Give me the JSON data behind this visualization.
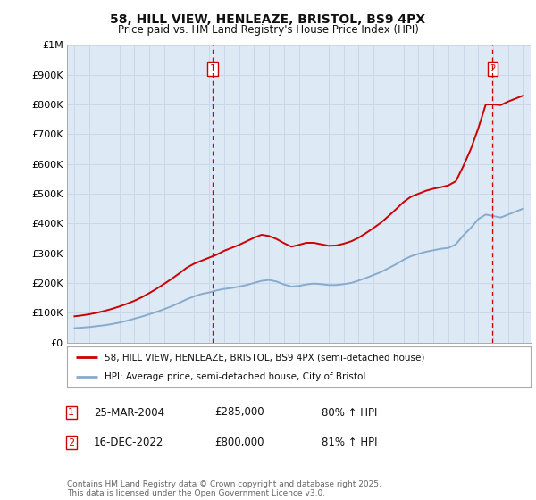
{
  "title": "58, HILL VIEW, HENLEAZE, BRISTOL, BS9 4PX",
  "subtitle": "Price paid vs. HM Land Registry's House Price Index (HPI)",
  "red_label": "58, HILL VIEW, HENLEAZE, BRISTOL, BS9 4PX (semi-detached house)",
  "blue_label": "HPI: Average price, semi-detached house, City of Bristol",
  "annotation1_date": "25-MAR-2004",
  "annotation1_price": "£285,000",
  "annotation1_hpi": "80% ↑ HPI",
  "annotation1_year": 2004.23,
  "annotation2_date": "16-DEC-2022",
  "annotation2_price": "£800,000",
  "annotation2_hpi": "81% ↑ HPI",
  "annotation2_year": 2022.96,
  "footer": "Contains HM Land Registry data © Crown copyright and database right 2025.\nThis data is licensed under the Open Government Licence v3.0.",
  "ylim": [
    0,
    1000000
  ],
  "xlim_start": 1994.5,
  "xlim_end": 2025.5,
  "red_color": "#cc0000",
  "blue_color": "#88aacc",
  "grid_color": "#c8d8e8",
  "bg_color": "#ddeaf5",
  "years_hpi": [
    1995,
    1995.5,
    1996,
    1996.5,
    1997,
    1997.5,
    1998,
    1998.5,
    1999,
    1999.5,
    2000,
    2000.5,
    2001,
    2001.5,
    2002,
    2002.5,
    2003,
    2003.5,
    2004,
    2004.5,
    2005,
    2005.5,
    2006,
    2006.5,
    2007,
    2007.5,
    2008,
    2008.5,
    2009,
    2009.5,
    2010,
    2010.5,
    2011,
    2011.5,
    2012,
    2012.5,
    2013,
    2013.5,
    2014,
    2014.5,
    2015,
    2015.5,
    2016,
    2016.5,
    2017,
    2017.5,
    2018,
    2018.5,
    2019,
    2019.5,
    2020,
    2020.5,
    2021,
    2021.5,
    2022,
    2022.5,
    2023,
    2023.5,
    2024,
    2024.5,
    2025
  ],
  "hpi_values": [
    48000,
    50000,
    52000,
    55000,
    58000,
    62000,
    67000,
    73000,
    80000,
    87000,
    95000,
    103000,
    112000,
    122000,
    133000,
    145000,
    155000,
    163000,
    168000,
    175000,
    180000,
    183000,
    188000,
    193000,
    200000,
    207000,
    210000,
    205000,
    195000,
    188000,
    190000,
    195000,
    198000,
    196000,
    193000,
    193000,
    196000,
    200000,
    208000,
    217000,
    227000,
    237000,
    250000,
    263000,
    278000,
    290000,
    298000,
    305000,
    310000,
    315000,
    318000,
    330000,
    360000,
    385000,
    415000,
    430000,
    425000,
    420000,
    430000,
    440000,
    450000
  ],
  "years_red": [
    1995,
    1995.5,
    1996,
    1996.5,
    1997,
    1997.5,
    1998,
    1998.5,
    1999,
    1999.5,
    2000,
    2000.5,
    2001,
    2001.5,
    2002,
    2002.5,
    2003,
    2003.5,
    2004,
    2004.5,
    2005,
    2005.5,
    2006,
    2006.5,
    2007,
    2007.5,
    2008,
    2008.5,
    2009,
    2009.5,
    2010,
    2010.5,
    2011,
    2011.5,
    2012,
    2012.5,
    2013,
    2013.5,
    2014,
    2014.5,
    2015,
    2015.5,
    2016,
    2016.5,
    2017,
    2017.5,
    2018,
    2018.5,
    2019,
    2019.5,
    2020,
    2020.5,
    2021,
    2021.5,
    2022,
    2022.5,
    2023,
    2023.5,
    2024,
    2024.5,
    2025
  ],
  "red_values": [
    88000,
    91000,
    95000,
    100000,
    106000,
    113000,
    121000,
    130000,
    140000,
    152000,
    166000,
    181000,
    197000,
    214000,
    232000,
    251000,
    265000,
    275000,
    285000,
    295000,
    308000,
    318000,
    328000,
    340000,
    352000,
    362000,
    358000,
    348000,
    334000,
    322000,
    328000,
    335000,
    335000,
    330000,
    325000,
    326000,
    332000,
    340000,
    352000,
    368000,
    385000,
    403000,
    425000,
    448000,
    472000,
    490000,
    500000,
    510000,
    517000,
    522000,
    528000,
    542000,
    593000,
    650000,
    720000,
    800000,
    800000,
    798000,
    810000,
    820000,
    830000
  ]
}
